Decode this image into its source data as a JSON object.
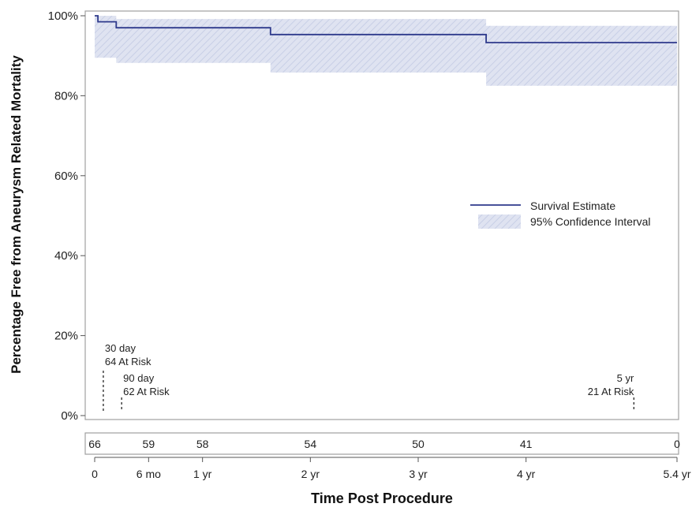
{
  "chart_data": {
    "type": "line",
    "title": "",
    "xlabel": "Time Post Procedure",
    "ylabel": "Percentage Free from Aneurysm Related Mortality",
    "x_unit": "years",
    "xlim": [
      0,
      5.4
    ],
    "ylim": [
      0,
      100
    ],
    "x_ticks": [
      {
        "value": 0,
        "label": "0"
      },
      {
        "value": 0.5,
        "label": "6 mo"
      },
      {
        "value": 1,
        "label": "1 yr"
      },
      {
        "value": 2,
        "label": "2 yr"
      },
      {
        "value": 3,
        "label": "3 yr"
      },
      {
        "value": 4,
        "label": "4 yr"
      },
      {
        "value": 5.4,
        "label": "5.4 yr"
      }
    ],
    "y_ticks": [
      {
        "value": 0,
        "label": "0%"
      },
      {
        "value": 20,
        "label": "20%"
      },
      {
        "value": 40,
        "label": "40%"
      },
      {
        "value": 60,
        "label": "60%"
      },
      {
        "value": 80,
        "label": "80%"
      },
      {
        "value": 100,
        "label": "100%"
      }
    ],
    "series": [
      {
        "name": "Survival Estimate",
        "color": "#2e3a8c",
        "step_x": [
          0,
          0.03,
          0.2,
          1.63,
          3.63,
          5.4
        ],
        "step_y": [
          100,
          98.5,
          97.0,
          95.3,
          93.3,
          93.3
        ]
      }
    ],
    "confidence_band": {
      "name": "95% Confidence Interval",
      "color": "#d6dcee",
      "step_x": [
        0,
        0.2,
        1.63,
        3.63,
        5.4
      ],
      "lower": [
        89.5,
        88.2,
        85.8,
        82.5,
        82.5
      ],
      "upper": [
        100,
        99.2,
        99.2,
        97.5,
        97.5
      ]
    },
    "legend": {
      "position": "center-right",
      "entries": [
        "Survival Estimate",
        "95% Confidence Interval"
      ]
    },
    "markers": [
      {
        "x": 0.08,
        "lines": [
          "30 day",
          "64 At Risk"
        ]
      },
      {
        "x": 0.25,
        "lines": [
          "90 day",
          "62 At Risk"
        ]
      },
      {
        "x": 5.0,
        "lines": [
          "5 yr",
          "21 At Risk"
        ]
      }
    ],
    "at_risk": [
      {
        "x": 0,
        "count": "66"
      },
      {
        "x": 0.5,
        "count": "59"
      },
      {
        "x": 1,
        "count": "58"
      },
      {
        "x": 2,
        "count": "54"
      },
      {
        "x": 3,
        "count": "50"
      },
      {
        "x": 4,
        "count": "41"
      },
      {
        "x": 5.4,
        "count": "0"
      }
    ],
    "grid": false
  }
}
